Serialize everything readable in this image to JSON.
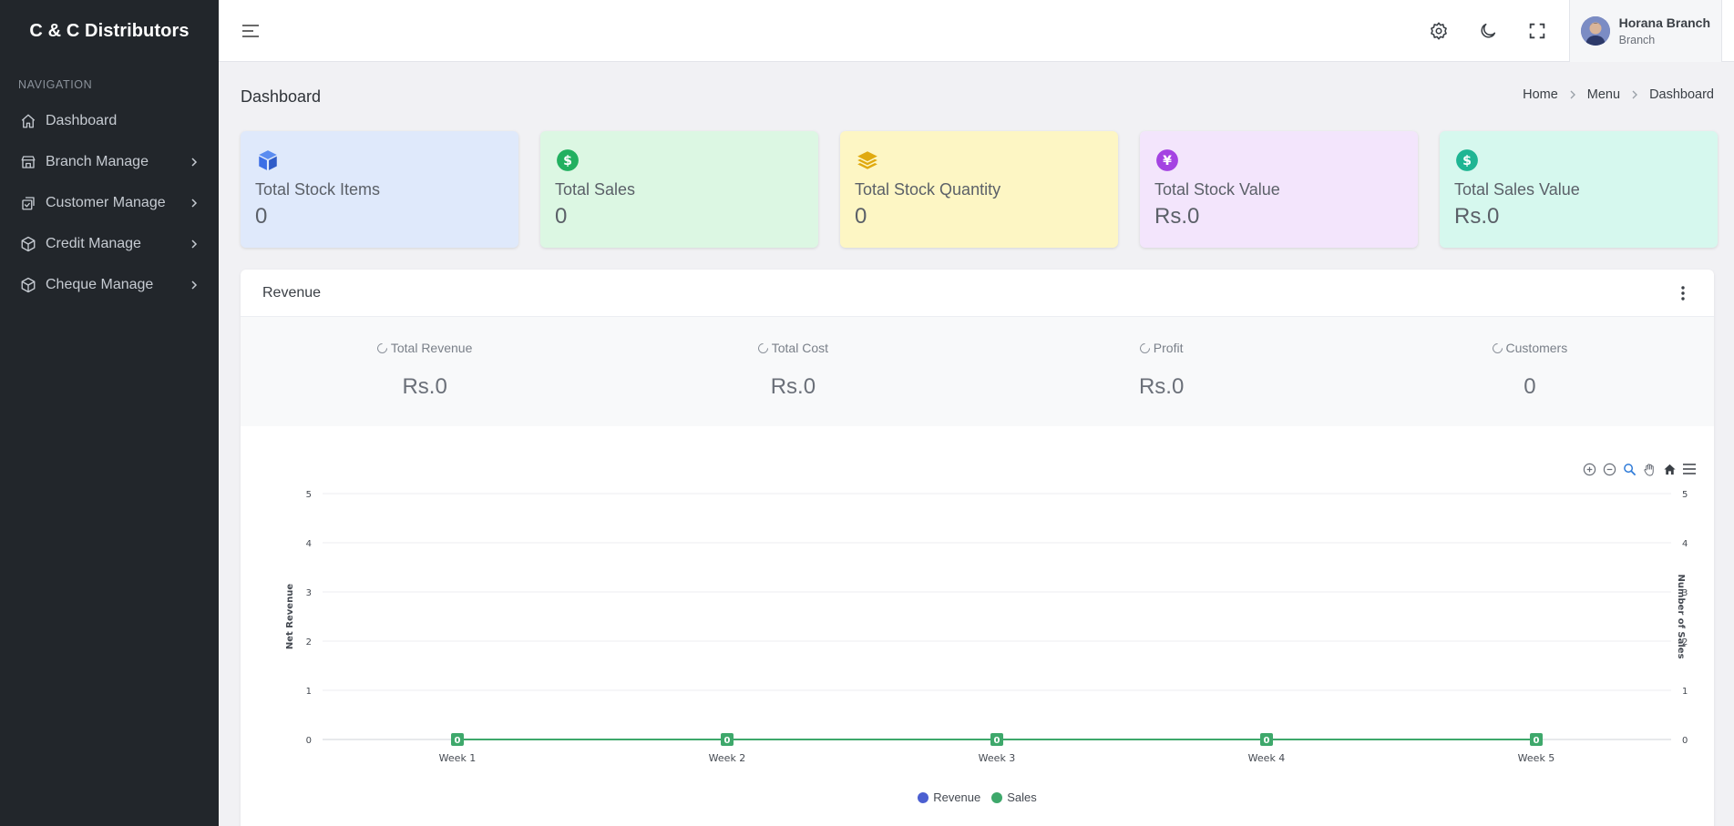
{
  "sidebar": {
    "brand": "C & C Distributors",
    "heading": "NAVIGATION",
    "items": [
      {
        "label": "Dashboard",
        "icon": "home-icon"
      },
      {
        "label": "Branch Manage",
        "icon": "store-icon"
      },
      {
        "label": "Customer Manage",
        "icon": "checklist-icon"
      },
      {
        "label": "Credit Manage",
        "icon": "cube-icon"
      },
      {
        "label": "Cheque Manage",
        "icon": "cube-icon"
      }
    ]
  },
  "topbar": {
    "user_name": "Horana Branch",
    "user_role": "Branch"
  },
  "page": {
    "title": "Dashboard",
    "breadcrumb": [
      "Home",
      "Menu",
      "Dashboard"
    ]
  },
  "cards": [
    {
      "title": "Total Stock Items",
      "value": "0",
      "bg": "#dfe9fb",
      "icon_color": "#3b6ee6",
      "icon": "box-icon"
    },
    {
      "title": "Total Sales",
      "value": "0",
      "bg": "#dcf7e3",
      "icon_color": "#22b060",
      "icon": "dollar-icon"
    },
    {
      "title": "Total Stock Quantity",
      "value": "0",
      "bg": "#fdf6c4",
      "icon_color": "#e0aa10",
      "icon": "layers-icon"
    },
    {
      "title": "Total Stock Value",
      "value": "Rs.0",
      "bg": "#f3e5fc",
      "icon_color": "#a443e2",
      "icon": "yen-icon"
    },
    {
      "title": "Total Sales Value",
      "value": "Rs.0",
      "bg": "#d6f8ee",
      "icon_color": "#1fb593",
      "icon": "dollar-icon"
    }
  ],
  "revenue": {
    "title": "Revenue",
    "summary": [
      {
        "label": "Total Revenue",
        "value": "Rs.0"
      },
      {
        "label": "Total Cost",
        "value": "Rs.0"
      },
      {
        "label": "Profit",
        "value": "Rs.0"
      },
      {
        "label": "Customers",
        "value": "0"
      }
    ]
  },
  "chart_data": {
    "type": "line",
    "categories": [
      "Week 1",
      "Week 2",
      "Week 3",
      "Week 4",
      "Week 5"
    ],
    "series": [
      {
        "name": "Revenue",
        "values": [
          0,
          0,
          0,
          0,
          0
        ],
        "color": "#4b5fd1"
      },
      {
        "name": "Sales",
        "values": [
          0,
          0,
          0,
          0,
          0
        ],
        "color": "#3ea86b"
      }
    ],
    "ylabel": "Net Revenue",
    "y2label": "Number of Sales",
    "ylim": [
      0,
      5
    ],
    "yticks": [
      0,
      1,
      2,
      3,
      4,
      5
    ],
    "data_labels": true,
    "legend": "bottom",
    "grid": true
  }
}
